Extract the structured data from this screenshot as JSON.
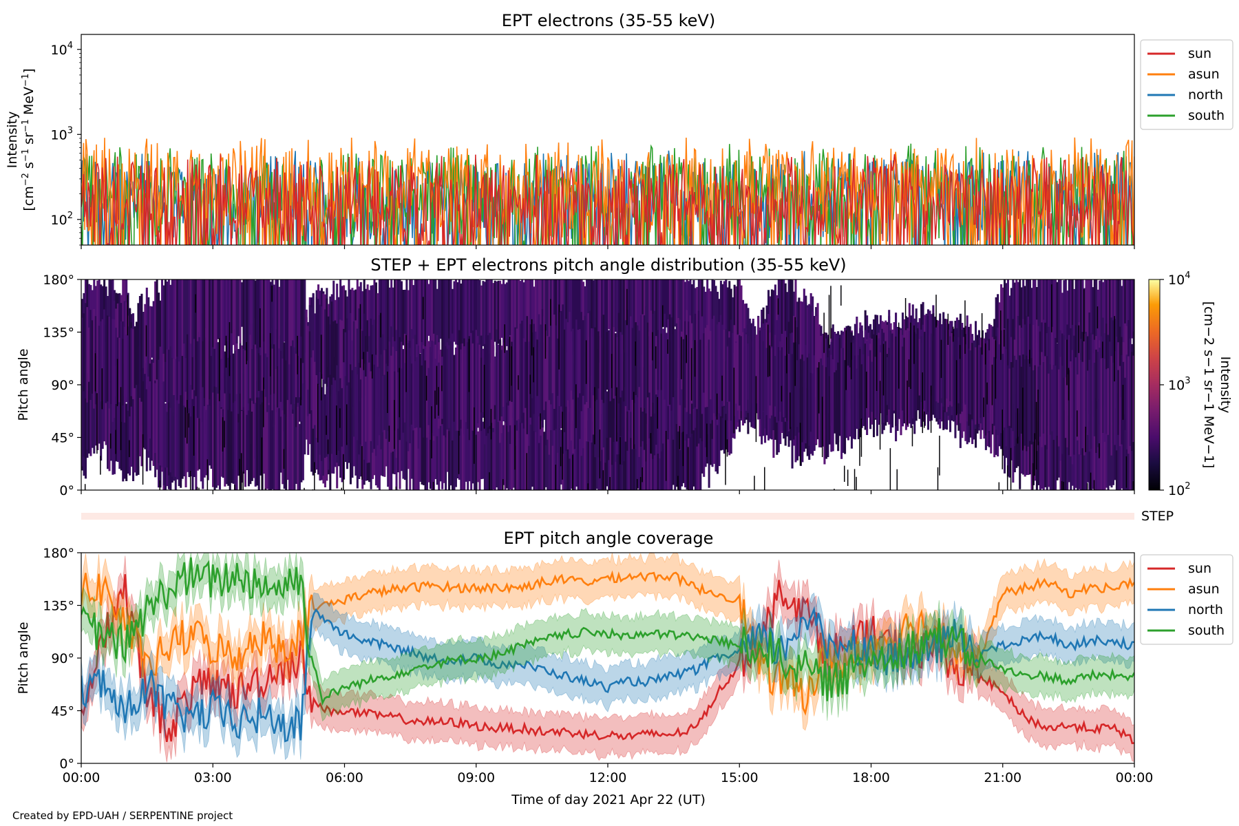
{
  "credit": "Created by EPD-UAH / SERPENTINE project",
  "x_axis": {
    "label": "Time of day 2021 Apr 22 (UT)",
    "ticks": [
      "00:00",
      "03:00",
      "06:00",
      "09:00",
      "12:00",
      "15:00",
      "18:00",
      "21:00",
      "00:00"
    ],
    "range_hours": [
      0,
      24
    ]
  },
  "colors": {
    "sun": "#d62728",
    "asun": "#ff7f0e",
    "north": "#1f77b4",
    "south": "#2ca02c"
  },
  "chart_data": [
    {
      "id": "intensity",
      "type": "line",
      "title": "EPT electrons (35-55 keV)",
      "ylabel": "Intensity",
      "yunit_lines": [
        "[cm",
        "−2",
        " s",
        "−1",
        " sr",
        "−1",
        " MeV",
        "−1",
        "]"
      ],
      "yscale": "log",
      "ylim": [
        50,
        15000
      ],
      "yticks": [
        {
          "base": "10",
          "exp": "2",
          "value": 100
        },
        {
          "base": "10",
          "exp": "3",
          "value": 1000
        },
        {
          "base": "10",
          "exp": "4",
          "value": 10000
        }
      ],
      "legend": {
        "placement": "outside-right-top",
        "entries": [
          "sun",
          "asun",
          "north",
          "south"
        ]
      },
      "series": [
        {
          "name": "sun",
          "typical_range": [
            50,
            450
          ]
        },
        {
          "name": "asun",
          "typical_range": [
            60,
            700
          ]
        },
        {
          "name": "north",
          "typical_range": [
            55,
            500
          ]
        },
        {
          "name": "south",
          "typical_range": [
            55,
            600
          ]
        }
      ]
    },
    {
      "id": "pad",
      "type": "heatmap",
      "title": "STEP + EPT electrons pitch angle distribution (35-55 keV)",
      "ylabel": "Pitch angle",
      "yticks": [
        "0°",
        "45°",
        "90°",
        "135°",
        "180°"
      ],
      "ylim": [
        0,
        180
      ],
      "colorbar": {
        "label": "Intensity",
        "unit": "[cm−2 s−1 sr−1 MeV−1]",
        "scale": "log",
        "range": [
          100,
          10000
        ],
        "ticks": [
          {
            "base": "10",
            "exp": "2"
          },
          {
            "base": "10",
            "exp": "3"
          },
          {
            "base": "10",
            "exp": "4"
          }
        ]
      },
      "dominant_level": 180
    },
    {
      "id": "step",
      "type": "bar",
      "label": "STEP"
    },
    {
      "id": "coverage",
      "type": "line",
      "title": "EPT pitch angle coverage",
      "ylabel": "Pitch angle",
      "yticks": [
        "0°",
        "45°",
        "90°",
        "135°",
        "180°"
      ],
      "ylim": [
        0,
        180
      ],
      "legend": {
        "placement": "outside-right-top",
        "entries": [
          "sun",
          "asun",
          "north",
          "south"
        ]
      },
      "x_hours": [
        0,
        0.5,
        1,
        1.5,
        2,
        2.5,
        3,
        3.5,
        4,
        4.5,
        5,
        5.25,
        5.5,
        6,
        6.5,
        7,
        7.5,
        8,
        8.5,
        9,
        9.5,
        10,
        10.5,
        11,
        11.5,
        12,
        12.5,
        13,
        13.5,
        14,
        14.5,
        15,
        15.5,
        16,
        16.5,
        17,
        17.5,
        18,
        18.5,
        19,
        19.5,
        20,
        20.5,
        21,
        21.5,
        22,
        22.5,
        23,
        23.5,
        24
      ],
      "series": [
        {
          "name": "sun",
          "values": [
            40,
            110,
            150,
            60,
            30,
            60,
            70,
            60,
            70,
            80,
            90,
            60,
            45,
            45,
            42,
            40,
            37,
            35,
            35,
            32,
            30,
            30,
            27,
            27,
            25,
            24,
            23,
            25,
            25,
            30,
            60,
            85,
            110,
            150,
            130,
            95,
            100,
            110,
            100,
            95,
            100,
            80,
            75,
            60,
            40,
            30,
            32,
            30,
            30,
            20
          ]
        },
        {
          "name": "asun",
          "values": [
            145,
            150,
            120,
            80,
            100,
            110,
            100,
            90,
            110,
            100,
            110,
            130,
            135,
            140,
            145,
            148,
            150,
            152,
            150,
            150,
            150,
            150,
            155,
            157,
            155,
            158,
            160,
            160,
            160,
            150,
            145,
            140,
            80,
            70,
            60,
            90,
            85,
            100,
            110,
            120,
            115,
            100,
            90,
            145,
            150,
            155,
            145,
            150,
            150,
            155
          ]
        },
        {
          "name": "north",
          "values": [
            60,
            70,
            40,
            70,
            45,
            40,
            45,
            35,
            40,
            35,
            30,
            130,
            125,
            110,
            105,
            100,
            95,
            90,
            88,
            90,
            85,
            85,
            80,
            75,
            70,
            65,
            70,
            70,
            75,
            80,
            90,
            95,
            105,
            95,
            130,
            100,
            105,
            95,
            90,
            90,
            100,
            110,
            95,
            100,
            105,
            110,
            100,
            105,
            105,
            100
          ]
        },
        {
          "name": "south",
          "values": [
            120,
            110,
            100,
            130,
            150,
            160,
            155,
            160,
            155,
            150,
            160,
            90,
            55,
            65,
            70,
            75,
            80,
            85,
            88,
            90,
            93,
            100,
            105,
            110,
            112,
            110,
            110,
            110,
            110,
            108,
            105,
            100,
            100,
            90,
            80,
            70,
            75,
            90,
            95,
            100,
            110,
            100,
            90,
            80,
            75,
            75,
            70,
            75,
            75,
            75
          ]
        }
      ]
    }
  ]
}
